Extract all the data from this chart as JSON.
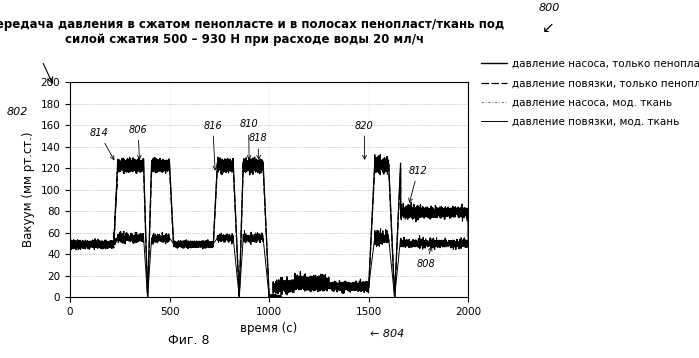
{
  "title_line1": "Передача давления в сжатом пенопласте и в полосах пенопласт/ткань под",
  "title_line2": "силой сжатия 500 – 930 Н при расходе воды 20 мл/ч",
  "xlabel": "время (с)",
  "ylabel": "Вакуум (мм рт.ст.)",
  "fig_label": "Фиг. 8",
  "xlim": [
    0,
    2000
  ],
  "ylim": [
    0,
    200
  ],
  "yticks": [
    0,
    20,
    40,
    60,
    80,
    100,
    120,
    140,
    160,
    180,
    200
  ],
  "xticks": [
    0,
    500,
    1000,
    1500,
    2000
  ],
  "legend_labels": [
    "давление насоса, только пенопласт",
    "давление повязки, только пенопласт",
    "давление насоса, мод. ткань",
    "давление повязки, мод. ткань"
  ],
  "bg_color": "#ffffff"
}
